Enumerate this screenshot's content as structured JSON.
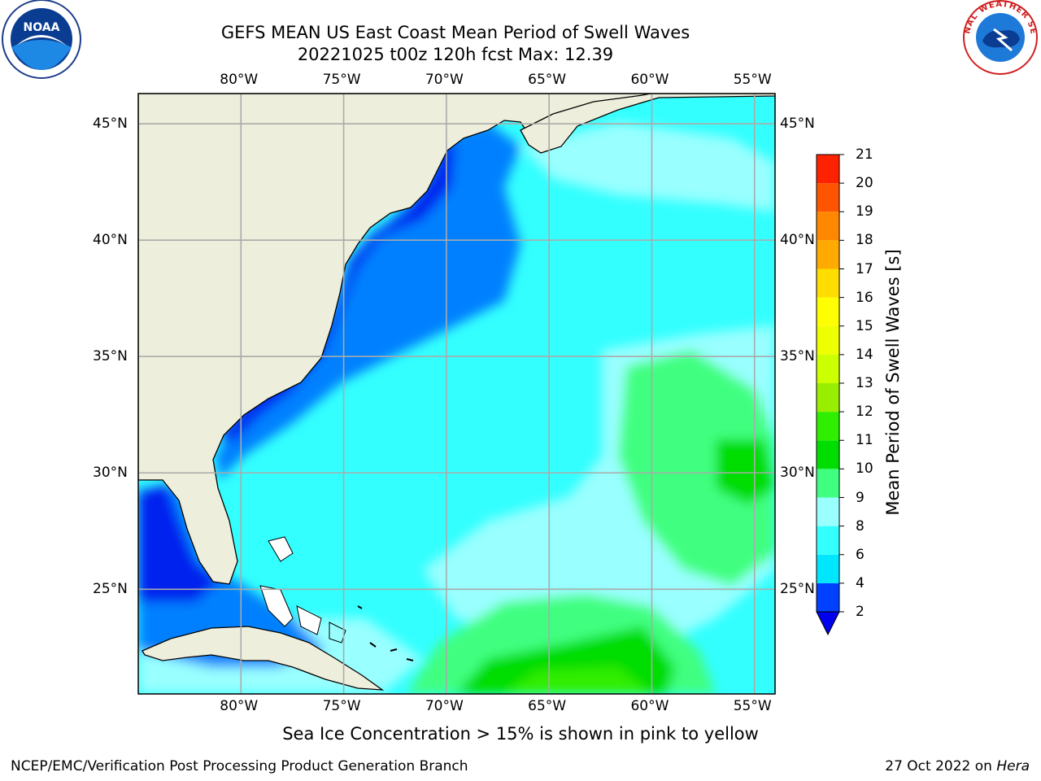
{
  "title_line1": "GEFS MEAN US East Coast Mean Period of Swell Waves",
  "title_line2": "20221025 t00z 120h fcst   Max: 12.39",
  "map": {
    "lon_ticks": [
      "80°W",
      "75°W",
      "70°W",
      "65°W",
      "60°W",
      "55°W"
    ],
    "lat_ticks": [
      "45°N",
      "40°N",
      "35°N",
      "30°N",
      "25°N"
    ],
    "lon_range_deg_w": [
      85,
      54
    ],
    "lat_range_deg_n": [
      20.5,
      46.3
    ]
  },
  "colorbar": {
    "label": "Mean Period of Swell Waves [s]",
    "ticks": [
      "2",
      "4",
      "6",
      "8",
      "9",
      "10",
      "11",
      "12",
      "13",
      "14",
      "15",
      "16",
      "17",
      "18",
      "19",
      "20",
      "21"
    ],
    "colors": [
      "#0040ff",
      "#00e6ff",
      "#33ffff",
      "#99ffff",
      "#40ff80",
      "#00dd00",
      "#30ee00",
      "#99ee00",
      "#ccff00",
      "#eeff00",
      "#ffff00",
      "#ffdd00",
      "#ffaa00",
      "#ff8800",
      "#ff5500",
      "#ff2200"
    ],
    "extend_color": "#0000ee"
  },
  "caption": "Sea Ice Concentration > 15% is shown in pink to yellow",
  "footer_left": "NCEP/EMC/Verification Post Processing Product Generation Branch",
  "footer_right_prefix": "27 Oct 2022 on ",
  "footer_right_host": "Hera",
  "logos": {
    "left": "NOAA",
    "right": "NATIONAL WEATHER SERVICE"
  }
}
